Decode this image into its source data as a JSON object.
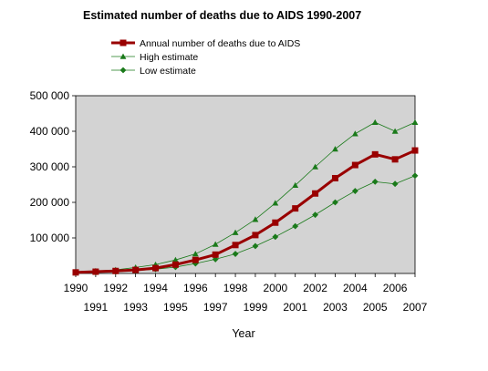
{
  "chart_data": {
    "type": "line",
    "title": "Estimated number of deaths due to AIDS 1990-2007",
    "xlabel": "Year",
    "ylabel": "",
    "x": [
      1990,
      1991,
      1992,
      1993,
      1994,
      1995,
      1996,
      1997,
      1998,
      1999,
      2000,
      2001,
      2002,
      2003,
      2004,
      2005,
      2006,
      2007
    ],
    "x_tick_labels": [
      "1990",
      "1991",
      "1992",
      "1993",
      "1994",
      "1995",
      "1996",
      "1997",
      "1998",
      "1999",
      "2000",
      "2001",
      "2002",
      "2003",
      "2004",
      "2005",
      "2006",
      "2007"
    ],
    "ylim": [
      0,
      500000
    ],
    "y_ticks": [
      100000,
      200000,
      300000,
      400000,
      500000
    ],
    "y_tick_labels": [
      "100 000",
      "200 000",
      "300 000",
      "400 000",
      "500 000"
    ],
    "grid": false,
    "legend_position": "top",
    "series": [
      {
        "name": "Annual number of deaths due to AIDS",
        "color": "#990000",
        "marker": "square",
        "values": [
          3000,
          5000,
          7000,
          10000,
          15000,
          25000,
          38000,
          53000,
          80000,
          108000,
          143000,
          183000,
          225000,
          268000,
          305000,
          335000,
          321000,
          346000
        ]
      },
      {
        "name": "High estimate",
        "color": "#1a7a1a",
        "marker": "triangle",
        "values": [
          4000,
          7000,
          10000,
          17000,
          25000,
          38000,
          55000,
          82000,
          115000,
          152000,
          198000,
          248000,
          300000,
          350000,
          393000,
          425000,
          400000,
          425000
        ]
      },
      {
        "name": "Low estimate",
        "color": "#1a7a1a",
        "marker": "diamond",
        "values": [
          2000,
          3000,
          5000,
          8000,
          12000,
          18000,
          28000,
          40000,
          55000,
          77000,
          103000,
          133000,
          165000,
          200000,
          232000,
          258000,
          252000,
          275000
        ]
      }
    ]
  }
}
